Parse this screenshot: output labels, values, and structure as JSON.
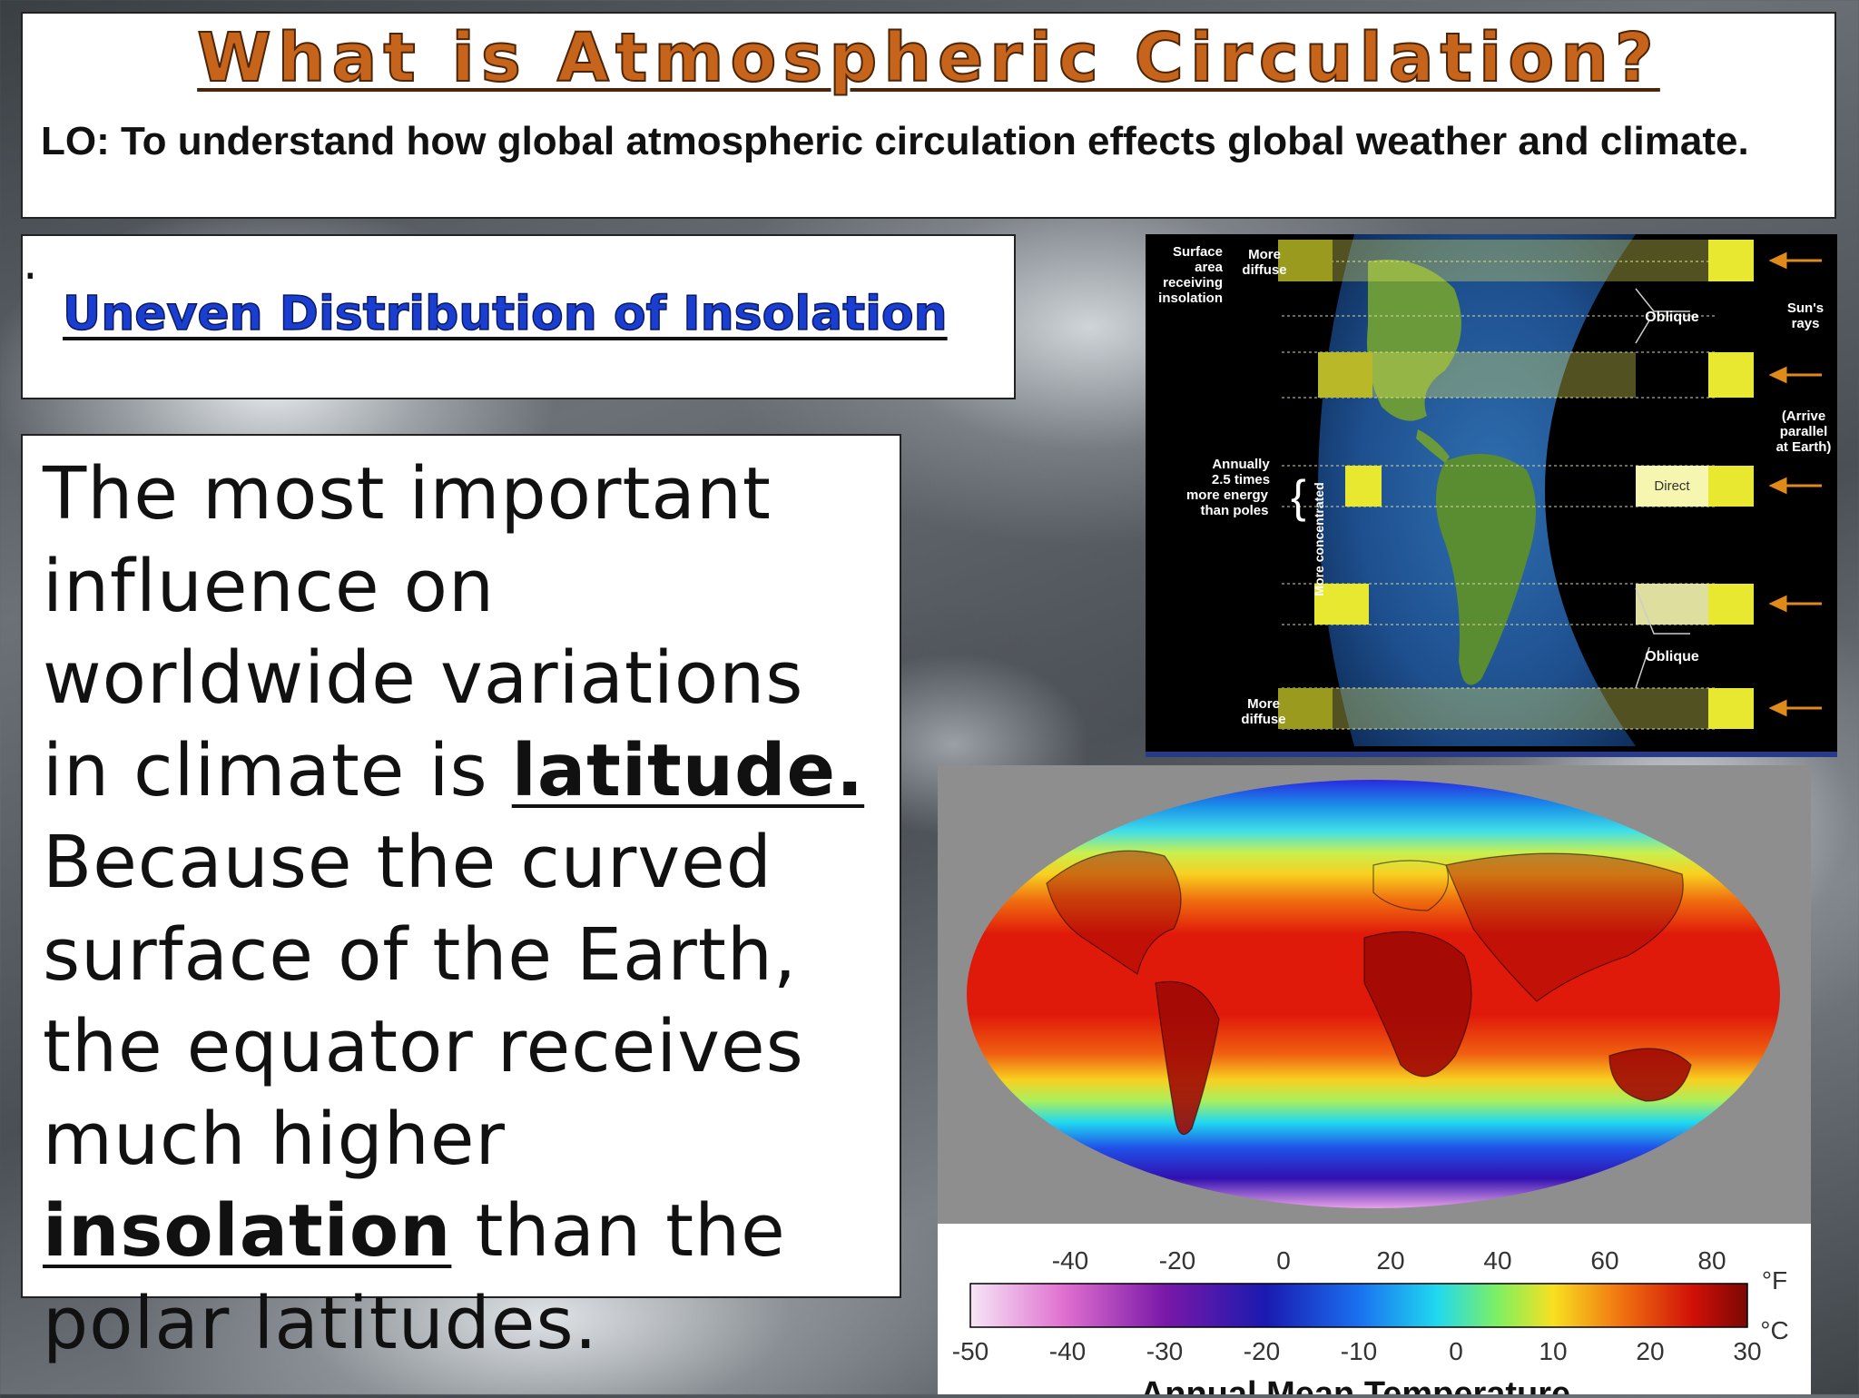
{
  "header": {
    "title": "What is Atmospheric Circulation?",
    "lo": "LO: To understand how global atmospheric circulation effects global weather and climate."
  },
  "subheading": {
    "text": "Uneven Distribution of Insolation",
    "punct": "."
  },
  "body": {
    "part1": "The most important influence on worldwide variations in climate is ",
    "emph1": "latitude.",
    "part2": " Because the curved surface of the Earth, the equator receives much higher ",
    "emph2": "insolation",
    "part3": " than the polar latitudes."
  },
  "insolation_diagram": {
    "surface_area_label": [
      "Surface",
      "area",
      "receiving",
      "insolation"
    ],
    "more_diffuse_top": [
      "More",
      "diffuse"
    ],
    "oblique_top": "Oblique",
    "suns_rays": [
      "Sun's",
      "rays"
    ],
    "arrive_parallel": [
      "(Arrive",
      "parallel",
      "at Earth)"
    ],
    "annually": [
      "Annually",
      "2.5 times",
      "more energy",
      "than poles"
    ],
    "more_concentrated": "More concentrated",
    "direct": "Direct",
    "oblique_bottom": "Oblique",
    "more_diffuse_bottom": [
      "More",
      "diffuse"
    ]
  },
  "temperature_map": {
    "fahrenheit_ticks": [
      "-40",
      "-20",
      "0",
      "20",
      "40",
      "60",
      "80"
    ],
    "fahrenheit_unit": "°F",
    "celsius_ticks": [
      "-50",
      "-40",
      "-30",
      "-20",
      "-10",
      "0",
      "10",
      "20",
      "30"
    ],
    "celsius_unit": "°C",
    "caption": "Annual Mean Temperature"
  }
}
